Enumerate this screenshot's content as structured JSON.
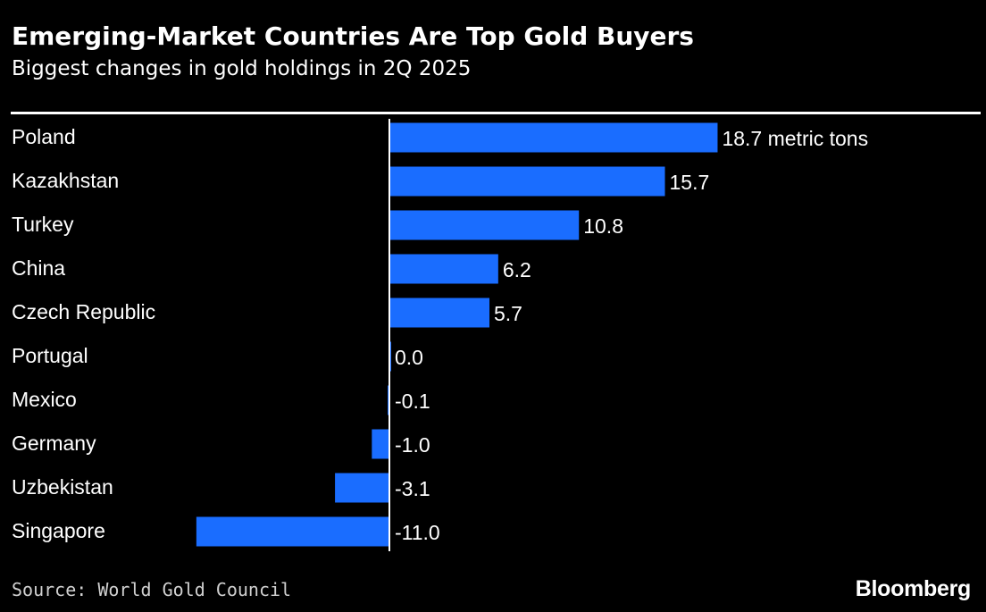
{
  "colors": {
    "background": "#000000",
    "bar": "#1a6dff",
    "text": "#ffffff",
    "axis": "#ffffff"
  },
  "header": {
    "title": "Emerging-Market Countries Are Top Gold Buyers",
    "subtitle": "Biggest changes in gold holdings in 2Q 2025"
  },
  "footer": {
    "source_label": "Source:",
    "source_text": "World Gold Council",
    "brand": "Bloomberg"
  },
  "chart_data": {
    "type": "bar",
    "orientation": "horizontal",
    "unit": "metric tons",
    "categories": [
      "Poland",
      "Kazakhstan",
      "Turkey",
      "China",
      "Czech Republic",
      "Portugal",
      "Mexico",
      "Germany",
      "Uzbekistan",
      "Singapore"
    ],
    "values": [
      18.7,
      15.7,
      10.8,
      6.2,
      5.7,
      0.0,
      -0.1,
      -1.0,
      -3.1,
      -11.0
    ],
    "labels": [
      "18.7 metric tons",
      "15.7",
      "10.8",
      "6.2",
      "5.7",
      "0.0",
      "-0.1",
      "-1.0",
      "-3.1",
      "-11.0"
    ],
    "grid": false,
    "legend": "none"
  }
}
